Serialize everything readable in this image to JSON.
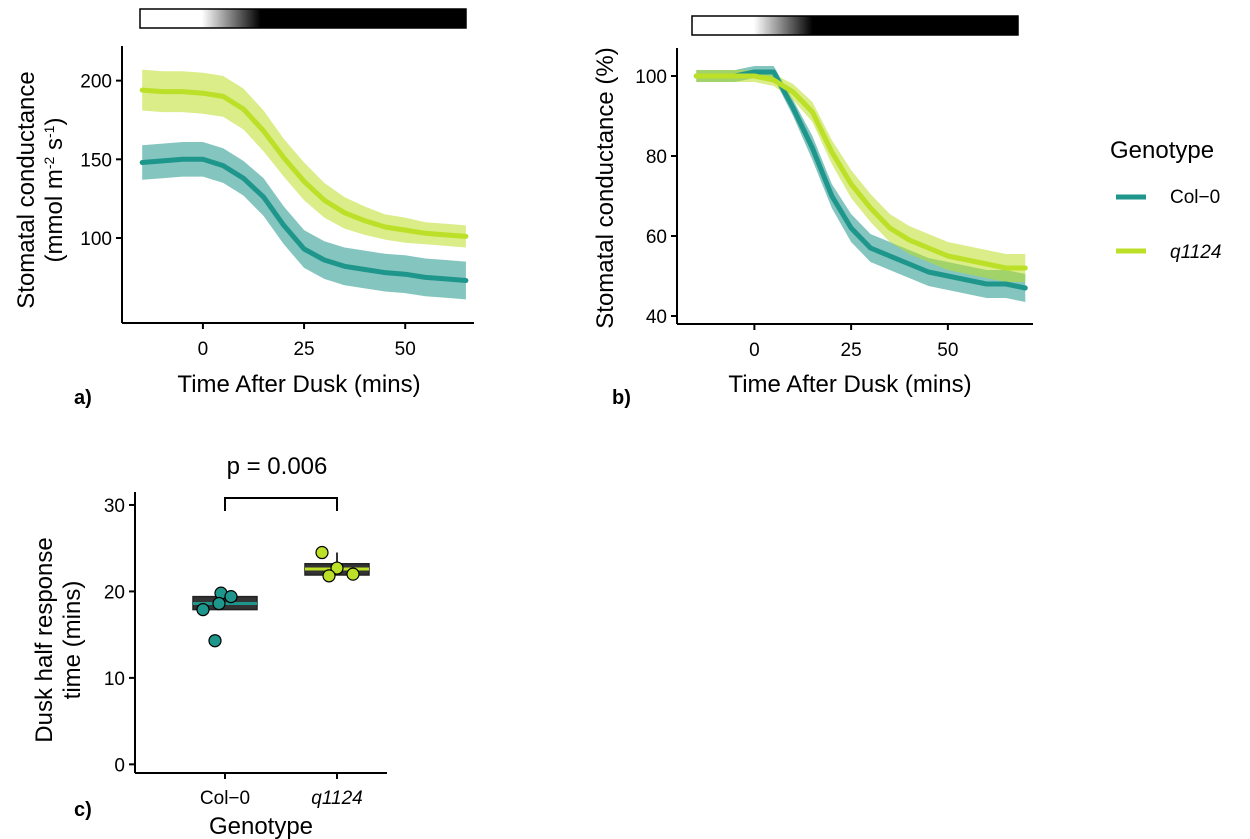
{
  "colors": {
    "col0": "#1f968b",
    "q1124": "#bcdf27"
  },
  "legend": {
    "title": "Genotype",
    "items": [
      {
        "label": "Col−0",
        "color": "#1f968b",
        "italic": false
      },
      {
        "label": "q1124",
        "color": "#bcdf27",
        "italic": true
      }
    ]
  },
  "chart_data": [
    {
      "panel": "a)",
      "type": "line",
      "xlabel": "Time After Dusk (mins)",
      "ylabel_line1": "Stomatal conductance",
      "ylabel_line2_pre": "(mmol m",
      "ylabel_sup1": "-2",
      "ylabel_mid": " s",
      "ylabel_sup2": "-1",
      "ylabel_post": ")",
      "xlim": [
        -20,
        67
      ],
      "ylim": [
        46,
        222
      ],
      "xticks": [
        0,
        25,
        50
      ],
      "yticks": [
        100,
        150,
        200
      ],
      "light_bar": "white to black gradient (dusk)",
      "series": [
        {
          "name": "Col−0",
          "x": [
            -15,
            -10,
            -5,
            0,
            5,
            10,
            15,
            20,
            25,
            30,
            35,
            40,
            45,
            50,
            55,
            60,
            65
          ],
          "y": [
            148,
            149,
            150,
            150,
            146,
            138,
            126,
            108,
            93,
            86,
            82,
            80,
            78,
            77,
            75,
            74,
            73
          ],
          "band": [
            11,
            11,
            11,
            11,
            11,
            11,
            12,
            12,
            12,
            12,
            12,
            12,
            12,
            12,
            12,
            12,
            12
          ]
        },
        {
          "name": "q1124",
          "x": [
            -15,
            -10,
            -5,
            0,
            5,
            10,
            15,
            20,
            25,
            30,
            35,
            40,
            45,
            50,
            55,
            60,
            65
          ],
          "y": [
            194,
            193,
            193,
            192,
            190,
            182,
            168,
            151,
            136,
            124,
            116,
            111,
            107,
            105,
            103,
            102,
            101
          ],
          "band": [
            13,
            13,
            13,
            13,
            13,
            13,
            13,
            12,
            12,
            11,
            10,
            9,
            8,
            8,
            7,
            7,
            7
          ]
        }
      ]
    },
    {
      "panel": "b)",
      "type": "line",
      "xlabel": "Time After Dusk (mins)",
      "ylabel": "Stomatal conductance (%)",
      "xlim": [
        -20,
        72
      ],
      "ylim": [
        38,
        107
      ],
      "xticks": [
        0,
        25,
        50
      ],
      "yticks": [
        40,
        60,
        80,
        100
      ],
      "light_bar": "white to black gradient (dusk)",
      "series": [
        {
          "name": "Col−0",
          "x": [
            -15,
            -10,
            -5,
            0,
            5,
            10,
            15,
            20,
            25,
            30,
            35,
            40,
            45,
            50,
            55,
            60,
            65,
            70
          ],
          "y": [
            100,
            100,
            100,
            101,
            101,
            92,
            82,
            70,
            62,
            57,
            55,
            53,
            51,
            50,
            49,
            48,
            48,
            47
          ],
          "band": [
            1.5,
            1.5,
            1.5,
            1.5,
            1.5,
            2,
            3,
            3,
            3.5,
            3.5,
            3.5,
            3.5,
            3.5,
            3.5,
            3.5,
            3.5,
            3.5,
            3.5
          ]
        },
        {
          "name": "q1124",
          "x": [
            -15,
            -10,
            -5,
            0,
            5,
            10,
            15,
            20,
            25,
            30,
            35,
            40,
            45,
            50,
            55,
            60,
            65,
            70
          ],
          "y": [
            100,
            100,
            100,
            100,
            99,
            96,
            91,
            81,
            73,
            67,
            62,
            59,
            57,
            55,
            54,
            53,
            52,
            52
          ],
          "band": [
            1.5,
            1.5,
            1.5,
            1.5,
            1.5,
            2,
            2.5,
            3,
            3.5,
            3.5,
            3.5,
            3.5,
            3.5,
            3.5,
            3.5,
            3.5,
            3.5,
            3.5
          ]
        }
      ]
    },
    {
      "panel": "c)",
      "type": "box",
      "xlabel": "Genotype",
      "ylabel_line1": "Dusk half response",
      "ylabel_line2": "time (mins)",
      "categories": [
        "Col−0",
        "q1124"
      ],
      "ylim": [
        -1,
        31.5
      ],
      "yticks": [
        0,
        10,
        20,
        30
      ],
      "boxes": [
        {
          "name": "Col−0",
          "q1": 17.9,
          "median": 18.6,
          "q3": 19.4,
          "whisker_low": 17.9,
          "whisker_high": 19.4,
          "points": [
            19.8,
            19.4,
            18.6,
            17.9,
            14.3
          ]
        },
        {
          "name": "q1124",
          "q1": 21.9,
          "median": 22.6,
          "q3": 23.2,
          "whisker_low": 21.9,
          "whisker_high": 24.5,
          "points": [
            24.5,
            22.7,
            22.0,
            21.8
          ]
        }
      ],
      "annotation": "p = 0.006"
    }
  ]
}
